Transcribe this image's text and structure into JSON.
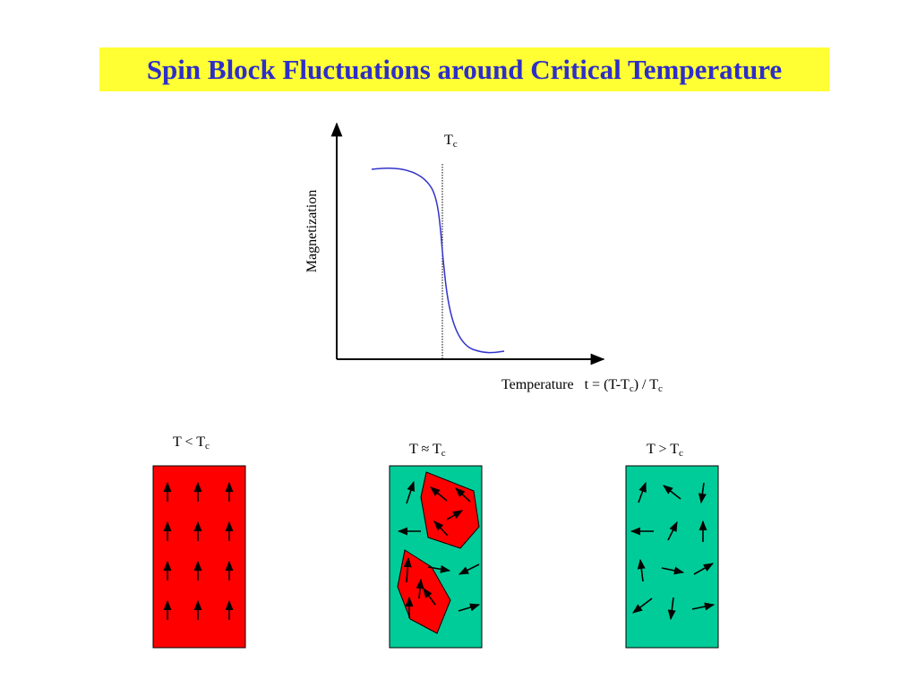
{
  "title": "Spin Block Fluctuations around Critical Temperature",
  "colors": {
    "title_bg": "#ffff33",
    "title_text": "#2e2ec8",
    "curve": "#3333cc",
    "ordered": "#ff0000",
    "disordered": "#00cc99"
  },
  "graph": {
    "y_label": "Magnetization",
    "tc_label": "T",
    "tc_sub": "c",
    "x_label": "Temperature",
    "x_formula_prefix": "t = (T-T",
    "x_formula_sub1": "c",
    "x_formula_mid": ") / T",
    "x_formula_sub2": "c"
  },
  "panels": [
    {
      "label_main": "T < T",
      "label_sub": "c",
      "state": "ordered"
    },
    {
      "label_main": "T ≈ T",
      "label_sub": "c",
      "state": "critical"
    },
    {
      "label_main": "T > T",
      "label_sub": "c",
      "state": "disordered"
    }
  ]
}
